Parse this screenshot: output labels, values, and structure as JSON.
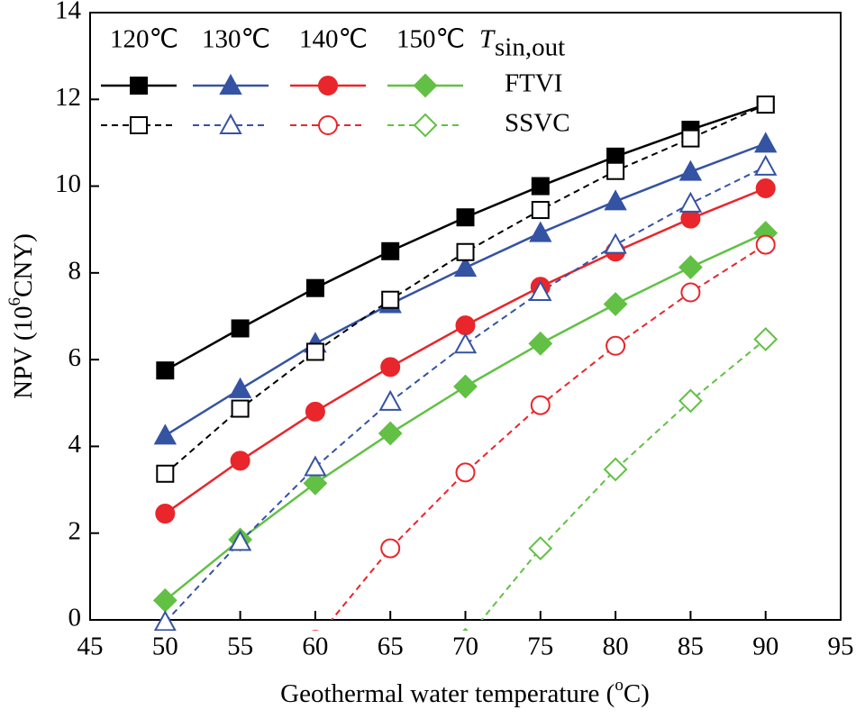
{
  "chart_data": {
    "type": "line",
    "xlabel": {
      "text": "Geothermal water temperature (",
      "sup": "o",
      "after": "C)"
    },
    "ylabel": {
      "text": "NPV (10",
      "sup": "6",
      "after": "CNY)"
    },
    "x": [
      50,
      55,
      60,
      65,
      70,
      75,
      80,
      85,
      90
    ],
    "xlim": [
      45,
      95
    ],
    "xticks": [
      45,
      50,
      55,
      60,
      65,
      70,
      75,
      80,
      85,
      90,
      95
    ],
    "ylim": [
      0,
      14
    ],
    "yticks": [
      0,
      2,
      4,
      6,
      8,
      10,
      12,
      14
    ],
    "legend": {
      "columns": [
        "120℃",
        "130℃",
        "140℃",
        "150℃"
      ],
      "header": {
        "symbol": "T",
        "subscript": "sin,out"
      },
      "rows": [
        "FTVI",
        "SSVC"
      ]
    },
    "series": [
      {
        "color": "#000000",
        "marker": "square",
        "filled": true,
        "dashed": false,
        "values": [
          5.75,
          6.72,
          7.65,
          8.5,
          9.28,
          10.0,
          10.68,
          11.3,
          11.88
        ]
      },
      {
        "color": "#3553a3",
        "marker": "triangle",
        "filled": true,
        "dashed": false,
        "values": [
          4.25,
          5.32,
          6.37,
          7.28,
          8.12,
          8.92,
          9.65,
          10.33,
          10.98
        ]
      },
      {
        "color": "#e8262b",
        "marker": "circle",
        "filled": true,
        "dashed": false,
        "values": [
          2.45,
          3.67,
          4.8,
          5.83,
          6.79,
          7.68,
          8.49,
          9.25,
          9.95
        ]
      },
      {
        "color": "#62c045",
        "marker": "diamond",
        "filled": true,
        "dashed": false,
        "values": [
          0.45,
          1.85,
          3.15,
          4.3,
          5.38,
          6.37,
          7.28,
          8.13,
          8.92
        ]
      },
      {
        "color": "#000000",
        "marker": "square",
        "filled": false,
        "dashed": true,
        "values": [
          3.37,
          4.87,
          6.18,
          7.38,
          8.48,
          9.45,
          10.35,
          11.1,
          11.88
        ]
      },
      {
        "color": "#3553a3",
        "marker": "triangle",
        "filled": false,
        "dashed": true,
        "values": [
          -0.05,
          1.8,
          3.52,
          5.03,
          6.35,
          7.56,
          8.65,
          9.6,
          10.45
        ]
      },
      {
        "color": "#e8262b",
        "marker": "circle",
        "filled": false,
        "dashed": true,
        "values": [
          null,
          null,
          -0.46,
          1.65,
          3.4,
          4.95,
          6.32,
          7.55,
          8.65
        ]
      },
      {
        "color": "#62c045",
        "marker": "diamond",
        "filled": false,
        "dashed": true,
        "values": [
          null,
          null,
          null,
          null,
          -0.46,
          1.65,
          3.47,
          5.05,
          6.47
        ]
      }
    ]
  }
}
